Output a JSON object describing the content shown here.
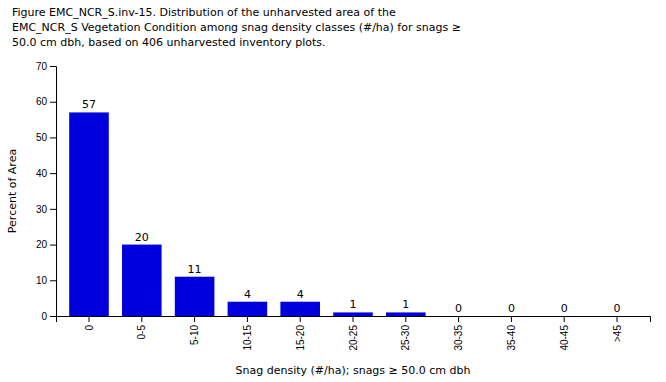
{
  "chart_data": {
    "type": "bar",
    "title": [
      "Figure EMC_NCR_S.inv-15. Distribution of the unharvested area of the",
      "EMC_NCR_S Vegetation Condition among snag density classes (#/ha) for snags ≥",
      "50.0 cm dbh, based on 406 unharvested inventory plots."
    ],
    "x_label": "Snag density (#/ha); snags ≥ 50.0 cm dbh",
    "y_label": "Percent of Area",
    "categories": [
      "0",
      "0-5",
      "5-10",
      "10-15",
      "15-20",
      "20-25",
      "25-30",
      "30-35",
      "35-40",
      "40-45",
      ">45"
    ],
    "values": [
      57,
      20,
      11,
      4,
      4,
      1,
      1,
      0,
      0,
      0,
      0
    ],
    "color": "#0000DD",
    "ylim": [
      0,
      70
    ],
    "yticks": [
      0,
      10,
      20,
      30,
      40,
      50,
      60,
      70
    ],
    "data_labels": true,
    "grid": false
  }
}
